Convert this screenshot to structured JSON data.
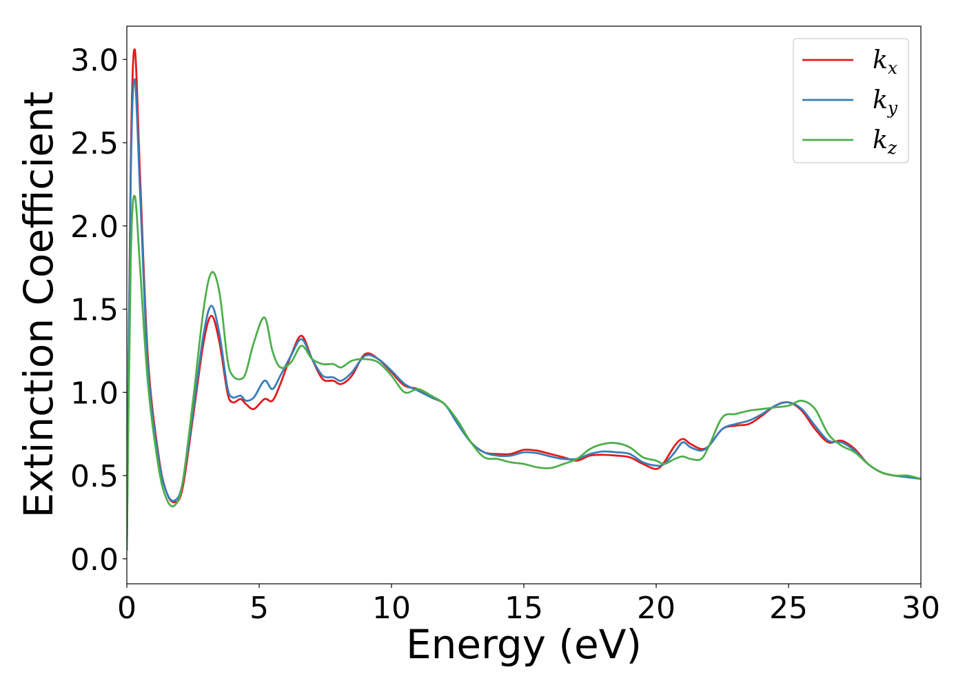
{
  "chart_data": {
    "type": "line",
    "title": "",
    "xlabel": "Energy (eV)",
    "ylabel": "Extinction Coefficient",
    "xlim": [
      0,
      30
    ],
    "ylim": [
      -0.15,
      3.2
    ],
    "xticks": [
      0,
      5,
      10,
      15,
      20,
      25,
      30
    ],
    "xtick_labels": [
      "0",
      "5",
      "10",
      "15",
      "20",
      "25",
      "30"
    ],
    "yticks": [
      0.0,
      0.5,
      1.0,
      1.5,
      2.0,
      2.5,
      3.0
    ],
    "ytick_labels": [
      "0.0",
      "0.5",
      "1.0",
      "1.5",
      "2.0",
      "2.5",
      "3.0"
    ],
    "grid": false,
    "legend_position": "top-right",
    "x": [
      0,
      0.15,
      0.3,
      0.5,
      0.8,
      1.2,
      1.5,
      1.8,
      2.1,
      2.5,
      2.9,
      3.2,
      3.5,
      3.8,
      4.0,
      4.3,
      4.5,
      4.8,
      5.2,
      5.5,
      5.8,
      6.2,
      6.6,
      7.0,
      7.4,
      7.8,
      8.1,
      8.5,
      9.0,
      9.5,
      10.0,
      10.5,
      11.0,
      11.5,
      12.0,
      12.5,
      13.0,
      13.5,
      14.0,
      14.5,
      15.0,
      15.5,
      16.0,
      16.5,
      17.0,
      17.5,
      18.0,
      18.5,
      19.0,
      19.5,
      20.0,
      20.3,
      20.7,
      21.0,
      21.3,
      21.7,
      22.0,
      22.5,
      23.0,
      23.5,
      24.0,
      24.5,
      25.0,
      25.5,
      26.0,
      26.5,
      27.0,
      27.5,
      28.0,
      28.5,
      29.0,
      29.5,
      30.0
    ],
    "series": [
      {
        "name": "k_x",
        "label_main": "k",
        "label_sub": "x",
        "color": "#e41a1c",
        "values": [
          0.05,
          2.4,
          3.06,
          2.3,
          1.2,
          0.62,
          0.4,
          0.34,
          0.42,
          0.85,
          1.3,
          1.46,
          1.3,
          1.0,
          0.94,
          0.96,
          0.93,
          0.9,
          0.96,
          0.95,
          1.05,
          1.22,
          1.34,
          1.2,
          1.08,
          1.07,
          1.05,
          1.1,
          1.23,
          1.2,
          1.12,
          1.04,
          1.02,
          0.97,
          0.93,
          0.82,
          0.7,
          0.64,
          0.63,
          0.63,
          0.655,
          0.65,
          0.63,
          0.61,
          0.59,
          0.62,
          0.625,
          0.62,
          0.61,
          0.57,
          0.54,
          0.58,
          0.68,
          0.72,
          0.69,
          0.66,
          0.68,
          0.78,
          0.8,
          0.81,
          0.86,
          0.92,
          0.94,
          0.89,
          0.78,
          0.7,
          0.71,
          0.66,
          0.57,
          0.52,
          0.5,
          0.495,
          0.48
        ]
      },
      {
        "name": "k_y",
        "label_main": "k",
        "label_sub": "y",
        "color": "#377eb8",
        "values": [
          0.05,
          2.3,
          2.88,
          2.2,
          1.15,
          0.6,
          0.4,
          0.35,
          0.45,
          0.88,
          1.35,
          1.52,
          1.35,
          1.03,
          0.97,
          0.98,
          0.95,
          0.97,
          1.07,
          1.02,
          1.1,
          1.22,
          1.32,
          1.2,
          1.1,
          1.09,
          1.07,
          1.12,
          1.22,
          1.2,
          1.13,
          1.05,
          1.01,
          0.97,
          0.93,
          0.81,
          0.7,
          0.64,
          0.62,
          0.62,
          0.64,
          0.635,
          0.615,
          0.6,
          0.6,
          0.63,
          0.645,
          0.64,
          0.63,
          0.58,
          0.56,
          0.57,
          0.64,
          0.7,
          0.67,
          0.65,
          0.68,
          0.78,
          0.81,
          0.83,
          0.87,
          0.92,
          0.94,
          0.9,
          0.8,
          0.71,
          0.7,
          0.65,
          0.57,
          0.52,
          0.5,
          0.49,
          0.48
        ]
      },
      {
        "name": "k_z",
        "label_main": "k",
        "label_sub": "z",
        "color": "#4daf4a",
        "values": [
          0.05,
          1.8,
          2.18,
          1.75,
          1.05,
          0.55,
          0.36,
          0.32,
          0.45,
          0.95,
          1.5,
          1.72,
          1.6,
          1.2,
          1.1,
          1.08,
          1.12,
          1.3,
          1.45,
          1.25,
          1.15,
          1.18,
          1.28,
          1.2,
          1.17,
          1.17,
          1.15,
          1.19,
          1.2,
          1.18,
          1.1,
          1.0,
          1.02,
          0.98,
          0.93,
          0.83,
          0.7,
          0.61,
          0.6,
          0.58,
          0.57,
          0.55,
          0.545,
          0.57,
          0.6,
          0.66,
          0.69,
          0.695,
          0.67,
          0.61,
          0.59,
          0.57,
          0.6,
          0.615,
          0.6,
          0.6,
          0.68,
          0.85,
          0.87,
          0.89,
          0.9,
          0.91,
          0.92,
          0.95,
          0.9,
          0.75,
          0.68,
          0.64,
          0.57,
          0.52,
          0.5,
          0.5,
          0.48
        ]
      }
    ]
  }
}
